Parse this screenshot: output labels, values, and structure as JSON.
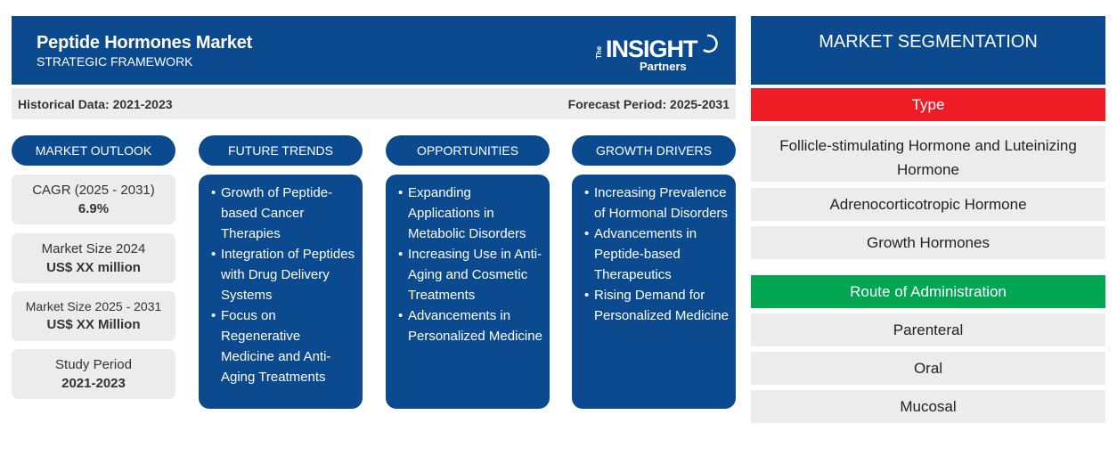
{
  "header": {
    "title": "Peptide Hormones Market",
    "subtitle": "STRATEGIC FRAMEWORK",
    "logo": {
      "the": "The",
      "insight": "INSIGHT",
      "partners": "Partners"
    }
  },
  "period": {
    "historical": "Historical Data: 2021-2023",
    "forecast": "Forecast Period: 2025-2031"
  },
  "columns": {
    "outlook": {
      "label": "MARKET OUTLOOK"
    },
    "trends": {
      "label": "FUTURE TRENDS",
      "items": [
        "Growth of Peptide-based Cancer Therapies",
        "Integration of Peptides with Drug Delivery Systems",
        "Focus on Regenerative Medicine and Anti-Aging Treatments"
      ]
    },
    "opportunities": {
      "label": "OPPORTUNITIES",
      "items": [
        "Expanding Applications in Metabolic Disorders",
        "Increasing Use in Anti-Aging and Cosmetic Treatments",
        "Advancements in Personalized Medicine"
      ]
    },
    "drivers": {
      "label": "GROWTH DRIVERS",
      "items": [
        "Increasing Prevalence of Hormonal Disorders",
        "Advancements in Peptide-based Therapeutics",
        "Rising Demand for Personalized Medicine"
      ]
    }
  },
  "stats": [
    {
      "label": "CAGR (2025 - 2031)",
      "value": "6.9%"
    },
    {
      "label": "Market Size 2024",
      "value": "US$ XX million"
    },
    {
      "label": "Market Size 2025 - 2031",
      "value": "US$ XX Million"
    },
    {
      "label": "Study Period",
      "value": "2021-2023"
    }
  ],
  "segmentation": {
    "title": "MARKET SEGMENTATION",
    "type": {
      "label": "Type",
      "color": "#ee1c25",
      "items": [
        "Follicle-stimulating Hormone and Luteinizing Hormone",
        "Adrenocorticotropic Hormone",
        "Growth Hormones"
      ]
    },
    "route": {
      "label": "Route of Administration",
      "color": "#00a651",
      "items": [
        "Parenteral",
        "Oral",
        "Mucosal"
      ]
    }
  },
  "colors": {
    "primary": "#0b4a8f",
    "panel": "#ececec"
  }
}
